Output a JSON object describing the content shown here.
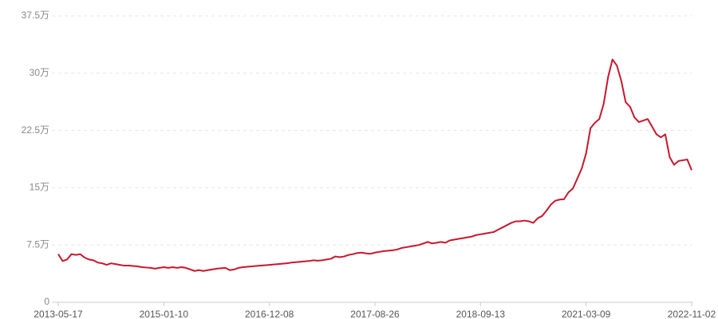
{
  "chart_data": {
    "type": "line",
    "color": "#c8172d",
    "grid": true,
    "categories": [
      "2013-05-17",
      null,
      null,
      null,
      null,
      null,
      null,
      null,
      null,
      null,
      null,
      null,
      null,
      null,
      null,
      null,
      null,
      null,
      null,
      null,
      null,
      null,
      null,
      null,
      "2015-01-10",
      null,
      null,
      null,
      null,
      null,
      null,
      null,
      null,
      null,
      null,
      null,
      null,
      null,
      null,
      null,
      null,
      null,
      null,
      null,
      null,
      null,
      null,
      null,
      "2016-12-08",
      null,
      null,
      null,
      null,
      null,
      null,
      null,
      null,
      null,
      null,
      null,
      null,
      null,
      null,
      null,
      null,
      null,
      null,
      null,
      null,
      null,
      null,
      null,
      "2017-08-26",
      null,
      null,
      null,
      null,
      null,
      null,
      null,
      null,
      null,
      null,
      null,
      null,
      null,
      null,
      null,
      null,
      null,
      null,
      null,
      null,
      null,
      null,
      null,
      "2018-09-13",
      null,
      null,
      null,
      null,
      null,
      null,
      null,
      null,
      null,
      null,
      null,
      null,
      null,
      null,
      null,
      null,
      null,
      null,
      null,
      null,
      null,
      null,
      null,
      "2021-03-09",
      null,
      null,
      null,
      null,
      null,
      null,
      null,
      null,
      null,
      null,
      null,
      null,
      null,
      null,
      null,
      null,
      null,
      null,
      null,
      null,
      null,
      null,
      null,
      "2022-11-02"
    ],
    "values": [
      6.3,
      5.4,
      5.6,
      6.3,
      6.2,
      6.3,
      5.85,
      5.6,
      5.5,
      5.2,
      5.1,
      4.9,
      5.1,
      5.0,
      4.9,
      4.8,
      4.8,
      4.75,
      4.7,
      4.6,
      4.55,
      4.5,
      4.4,
      4.5,
      4.6,
      4.5,
      4.6,
      4.5,
      4.6,
      4.5,
      4.3,
      4.1,
      4.2,
      4.1,
      4.2,
      4.3,
      4.4,
      4.45,
      4.5,
      4.2,
      4.3,
      4.5,
      4.6,
      4.65,
      4.7,
      4.75,
      4.8,
      4.85,
      4.9,
      4.95,
      5.0,
      5.05,
      5.1,
      5.2,
      5.25,
      5.3,
      5.35,
      5.4,
      5.5,
      5.45,
      5.5,
      5.6,
      5.7,
      6.0,
      5.9,
      6.0,
      6.2,
      6.3,
      6.45,
      6.5,
      6.4,
      6.35,
      6.5,
      6.6,
      6.7,
      6.75,
      6.8,
      6.9,
      7.1,
      7.2,
      7.3,
      7.4,
      7.5,
      7.7,
      7.9,
      7.7,
      7.8,
      7.9,
      7.8,
      8.1,
      8.2,
      8.3,
      8.4,
      8.5,
      8.6,
      8.8,
      8.9,
      9.0,
      9.1,
      9.2,
      9.5,
      9.8,
      10.1,
      10.4,
      10.6,
      10.6,
      10.7,
      10.6,
      10.4,
      11.0,
      11.3,
      12.0,
      12.8,
      13.3,
      13.45,
      13.5,
      14.4,
      14.9,
      16.2,
      17.5,
      19.5,
      22.8,
      23.5,
      24.0,
      26.0,
      29.5,
      31.8,
      31.0,
      29.0,
      26.2,
      25.6,
      24.2,
      23.6,
      23.8,
      24.0,
      23.0,
      22.0,
      21.6,
      22.0,
      19.0,
      18.0,
      18.5,
      18.6,
      18.7,
      17.3
    ],
    "ylim": [
      0,
      37.5
    ],
    "yticks": [
      0,
      {
        "value": 7.5,
        "label": "7.5万"
      },
      {
        "value": 15,
        "label": "15万"
      },
      {
        "value": 22.5,
        "label": "22.5万"
      },
      {
        "value": 30,
        "label": "30万"
      },
      {
        "value": 37.5,
        "label": "37.5万"
      }
    ]
  }
}
